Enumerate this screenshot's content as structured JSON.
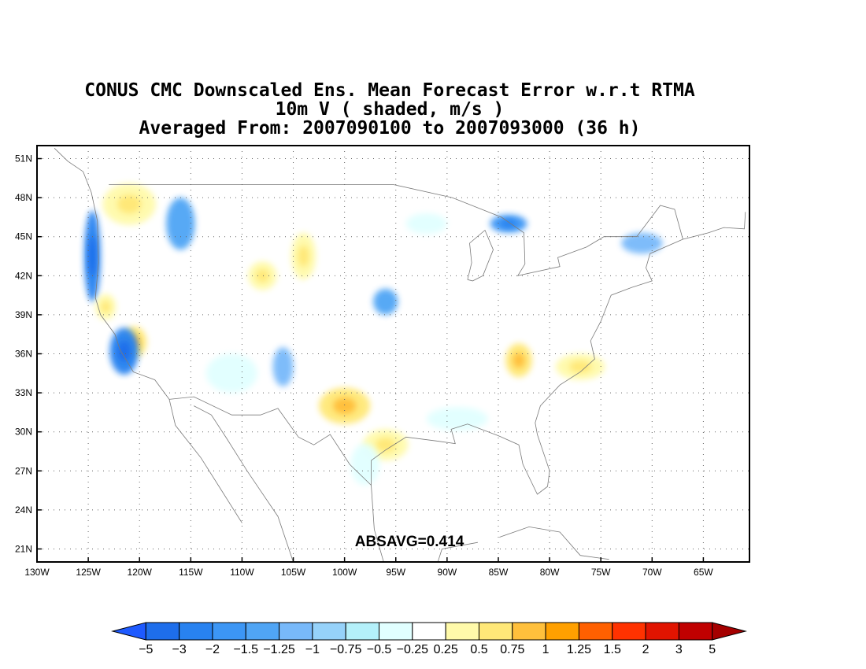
{
  "title": {
    "line1": "CONUS CMC Downscaled Ens. Mean Forecast Error w.r.t RTMA",
    "line2": "10m V ( shaded, m/s )",
    "line3": "Averaged From: 2007090100 to 2007093000 (36 h)"
  },
  "annotation": "ABSAVG=0.414",
  "map": {
    "lon_range": [
      -130,
      -60.5
    ],
    "lat_range": [
      20,
      52
    ],
    "x_ticks": [
      {
        "lon": -130,
        "label": "130W"
      },
      {
        "lon": -125,
        "label": "125W"
      },
      {
        "lon": -120,
        "label": "120W"
      },
      {
        "lon": -115,
        "label": "115W"
      },
      {
        "lon": -110,
        "label": "110W"
      },
      {
        "lon": -105,
        "label": "105W"
      },
      {
        "lon": -100,
        "label": "100W"
      },
      {
        "lon": -95,
        "label": "95W"
      },
      {
        "lon": -90,
        "label": "90W"
      },
      {
        "lon": -85,
        "label": "85W"
      },
      {
        "lon": -80,
        "label": "80W"
      },
      {
        "lon": -75,
        "label": "75W"
      },
      {
        "lon": -70,
        "label": "70W"
      },
      {
        "lon": -65,
        "label": "65W"
      }
    ],
    "y_ticks": [
      {
        "lat": 21,
        "label": "21N"
      },
      {
        "lat": 24,
        "label": "24N"
      },
      {
        "lat": 27,
        "label": "27N"
      },
      {
        "lat": 30,
        "label": "30N"
      },
      {
        "lat": 33,
        "label": "33N"
      },
      {
        "lat": 36,
        "label": "36N"
      },
      {
        "lat": 39,
        "label": "39N"
      },
      {
        "lat": 42,
        "label": "42N"
      },
      {
        "lat": 45,
        "label": "45N"
      },
      {
        "lat": 48,
        "label": "48N"
      },
      {
        "lat": 51,
        "label": "51N"
      }
    ],
    "grid": true,
    "blobs": [
      {
        "lon": -121,
        "lat": 47.5,
        "rx": 2.6,
        "ry": 1.6,
        "level": 10
      },
      {
        "lon": -124.6,
        "lat": 43.5,
        "rx": 0.8,
        "ry": 3.5,
        "level": 2
      },
      {
        "lon": -123.3,
        "lat": 39.6,
        "rx": 1.0,
        "ry": 1.0,
        "level": 10
      },
      {
        "lon": -120.5,
        "lat": 36.9,
        "rx": 1.2,
        "ry": 1.2,
        "level": 11
      },
      {
        "lon": -121.5,
        "lat": 36.2,
        "rx": 1.4,
        "ry": 1.8,
        "level": 2
      },
      {
        "lon": -115.5,
        "lat": 34.5,
        "rx": 1.5,
        "ry": 1.0,
        "level": 9
      },
      {
        "lon": -116,
        "lat": 46,
        "rx": 1.4,
        "ry": 2.0,
        "level": 4
      },
      {
        "lon": -108,
        "lat": 42,
        "rx": 1.4,
        "ry": 1.1,
        "level": 10
      },
      {
        "lon": -104,
        "lat": 43.5,
        "rx": 1.2,
        "ry": 1.8,
        "level": 10
      },
      {
        "lon": -103,
        "lat": 40.5,
        "rx": 0.9,
        "ry": 1.2,
        "level": 9
      },
      {
        "lon": -100,
        "lat": 32,
        "rx": 2.5,
        "ry": 1.4,
        "level": 11
      },
      {
        "lon": -96,
        "lat": 29,
        "rx": 2.2,
        "ry": 1.2,
        "level": 10
      },
      {
        "lon": -98,
        "lat": 27.5,
        "rx": 1.4,
        "ry": 1.6,
        "level": 8
      },
      {
        "lon": -94,
        "lat": 36,
        "rx": 0.9,
        "ry": 0.9,
        "level": 9
      },
      {
        "lon": -83,
        "lat": 35.5,
        "rx": 1.3,
        "ry": 1.3,
        "level": 11
      },
      {
        "lon": -77,
        "lat": 35,
        "rx": 2.4,
        "ry": 1.0,
        "level": 10
      },
      {
        "lon": -80.5,
        "lat": 27,
        "rx": 0.8,
        "ry": 2.0,
        "level": 9
      },
      {
        "lon": -81,
        "lat": 32,
        "rx": 0.8,
        "ry": 1.4,
        "level": 9
      },
      {
        "lon": -84,
        "lat": 46,
        "rx": 1.8,
        "ry": 0.7,
        "level": 3
      },
      {
        "lon": -92,
        "lat": 46,
        "rx": 2.0,
        "ry": 0.8,
        "level": 8
      },
      {
        "lon": -71,
        "lat": 44.5,
        "rx": 2.0,
        "ry": 0.8,
        "level": 5
      },
      {
        "lon": -96,
        "lat": 40,
        "rx": 1.2,
        "ry": 1.0,
        "level": 4
      },
      {
        "lon": -89,
        "lat": 31,
        "rx": 3.0,
        "ry": 0.9,
        "level": 8
      },
      {
        "lon": -111,
        "lat": 34.5,
        "rx": 2.5,
        "ry": 1.5,
        "level": 8
      },
      {
        "lon": -106,
        "lat": 35,
        "rx": 1.0,
        "ry": 1.5,
        "level": 5
      }
    ]
  },
  "colorbar": {
    "labels": [
      "-5",
      "-3",
      "-2",
      "-1.5",
      "-1.25",
      "-1",
      "-0.75",
      "-0.5",
      "-0.25",
      "0.25",
      "0.5",
      "0.75",
      "1",
      "1.25",
      "1.5",
      "2",
      "3",
      "5"
    ],
    "colors": [
      "#1e5aff",
      "#1e6eeb",
      "#2882f0",
      "#3c96f5",
      "#50a5f5",
      "#78b9fa",
      "#96d2fa",
      "#b4f0fa",
      "#e1ffff",
      "#ffffff",
      "#fffaaa",
      "#ffe878",
      "#ffc03c",
      "#ffa000",
      "#ff6000",
      "#ff3200",
      "#e11400",
      "#c00000",
      "#a50000"
    ]
  }
}
